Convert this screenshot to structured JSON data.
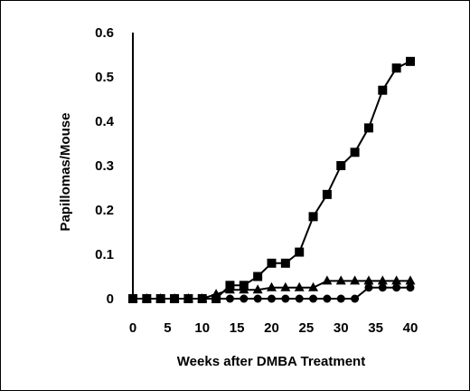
{
  "chart_data": {
    "type": "line",
    "title": "",
    "xlabel": "Weeks after DMBA Treatment",
    "ylabel": "Papillomas/Mouse",
    "xlim": [
      0,
      40
    ],
    "ylim": [
      0,
      0.6
    ],
    "xticks": [
      0,
      5,
      10,
      15,
      20,
      25,
      30,
      35,
      40
    ],
    "xtick_labels": [
      "0",
      "5",
      "10",
      "15",
      "20",
      "25",
      "30",
      "35",
      "40"
    ],
    "yticks": [
      0,
      0.1,
      0.2,
      0.3,
      0.4,
      0.5,
      0.6
    ],
    "ytick_labels": [
      "0",
      "0.1",
      "0.2",
      "0.3",
      "0.4",
      "0.5",
      "0.6"
    ],
    "grid": false,
    "legend": "none",
    "series": [
      {
        "marker": "square",
        "color": "#000000",
        "x": [
          0,
          2,
          4,
          6,
          8,
          10,
          12,
          14,
          16,
          18,
          20,
          22,
          24,
          26,
          28,
          30,
          32,
          34,
          36,
          38,
          40
        ],
        "y": [
          0,
          0,
          0,
          0,
          0,
          0,
          0,
          0.03,
          0.03,
          0.05,
          0.08,
          0.08,
          0.105,
          0.185,
          0.235,
          0.3,
          0.33,
          0.385,
          0.47,
          0.52,
          0.535
        ]
      },
      {
        "marker": "triangle",
        "color": "#000000",
        "x": [
          0,
          2,
          4,
          6,
          8,
          10,
          12,
          14,
          16,
          18,
          20,
          22,
          24,
          26,
          28,
          30,
          32,
          34,
          36,
          38,
          40
        ],
        "y": [
          0,
          0,
          0,
          0,
          0,
          0,
          0.01,
          0.02,
          0.02,
          0.02,
          0.025,
          0.025,
          0.025,
          0.025,
          0.04,
          0.04,
          0.04,
          0.04,
          0.04,
          0.04,
          0.04
        ]
      },
      {
        "marker": "circle",
        "color": "#000000",
        "x": [
          0,
          2,
          4,
          6,
          8,
          10,
          12,
          14,
          16,
          18,
          20,
          22,
          24,
          26,
          28,
          30,
          32,
          34,
          36,
          38,
          40
        ],
        "y": [
          0,
          0,
          0,
          0,
          0,
          0,
          0,
          0,
          0,
          0,
          0,
          0,
          0,
          0,
          0,
          0,
          0,
          0.025,
          0.025,
          0.025,
          0.025
        ]
      }
    ]
  }
}
